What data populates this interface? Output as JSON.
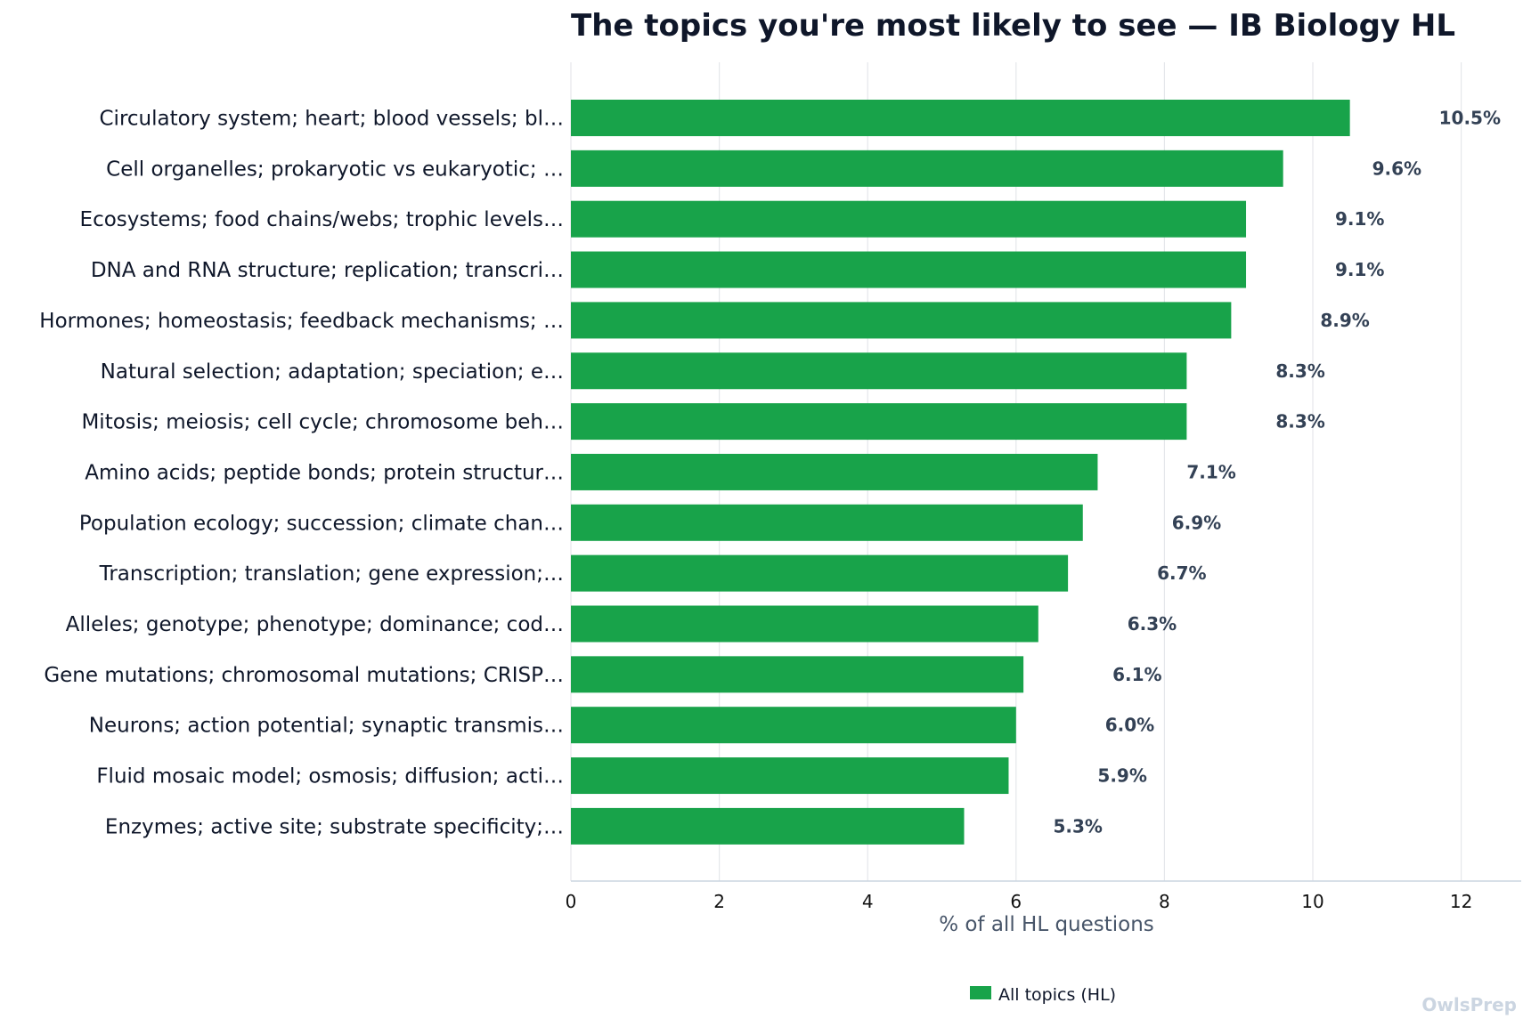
{
  "chart_data": {
    "type": "bar",
    "orientation": "horizontal",
    "title": "The topics you're most likely to see — IB Biology HL",
    "xlabel": "% of all HL questions",
    "ylabel": "",
    "xlim": [
      0,
      12.8
    ],
    "xticks": [
      0,
      2,
      4,
      6,
      8,
      10,
      12
    ],
    "grid": true,
    "legend_position": "bottom",
    "categories": [
      "Circulatory system; heart; blood vessels; bl…",
      "Cell organelles; prokaryotic vs eukaryotic; …",
      "Ecosystems; food chains/webs; trophic levels…",
      "DNA and RNA structure; replication; transcri…",
      "Hormones; homeostasis; feedback mechanisms; …",
      "Natural selection; adaptation; speciation; e…",
      "Mitosis; meiosis; cell cycle; chromosome beh…",
      "Amino acids; peptide bonds; protein structur…",
      "Population ecology; succession; climate chan…",
      "Transcription; translation; gene expression;…",
      "Alleles; genotype; phenotype; dominance; cod…",
      "Gene mutations; chromosomal mutations; CRISP…",
      "Neurons; action potential; synaptic transmis…",
      "Fluid mosaic model; osmosis; diffusion; acti…",
      "Enzymes; active site; substrate specificity;…"
    ],
    "series": [
      {
        "name": "All topics (HL)",
        "values": [
          10.5,
          9.6,
          9.1,
          9.1,
          8.9,
          8.3,
          8.3,
          7.1,
          6.9,
          6.7,
          6.3,
          6.1,
          6.0,
          5.9,
          5.3
        ],
        "labels": [
          "10.5%",
          "9.6%",
          "9.1%",
          "9.1%",
          "8.9%",
          "8.3%",
          "8.3%",
          "7.1%",
          "6.9%",
          "6.7%",
          "6.3%",
          "6.1%",
          "6.0%",
          "5.9%",
          "5.3%"
        ]
      }
    ]
  },
  "colors": {
    "bar": "#18a34a",
    "title": "#0f172a",
    "category_text": "#0f172a",
    "value_text": "#334155",
    "tick_text": "#111111",
    "axis_title": "#475569",
    "grid": "#e5e7eb",
    "axis_line": "#cbd5e1",
    "watermark": "#cbd5e1"
  },
  "watermark": "OwlsPrep"
}
